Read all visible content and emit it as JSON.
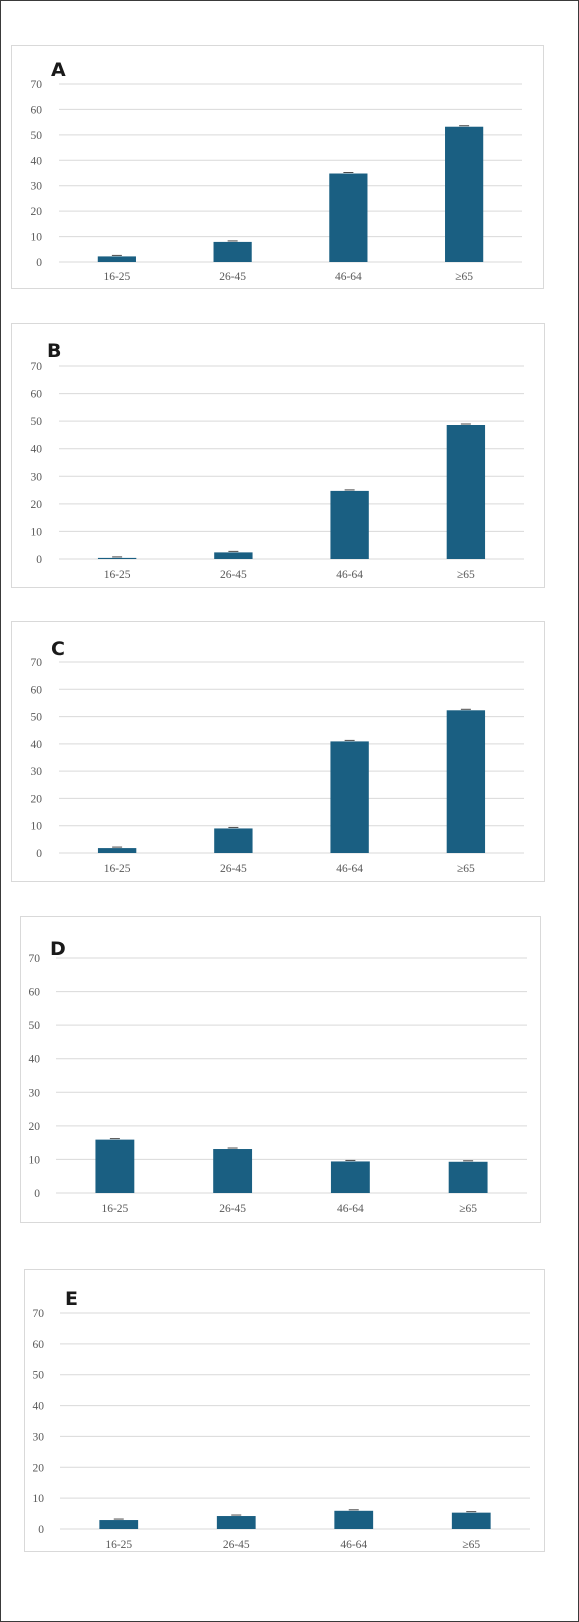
{
  "colors": {
    "bar": "#1a5f82",
    "grid": "#d9d9d9",
    "axis_text": "#595959",
    "panel_border": "#d9d9d9"
  },
  "chart_data": [
    {
      "type": "bar",
      "panel_label": "A",
      "categories": [
        "16-25",
        "26-45",
        "46-64",
        "≥65"
      ],
      "values": [
        2.2,
        7.9,
        34.8,
        53.2
      ],
      "ylim": [
        0,
        70
      ],
      "yticks": [
        "0",
        "10",
        "20",
        "30",
        "40",
        "50",
        "60",
        "70"
      ],
      "grid": true,
      "error_bars": true
    },
    {
      "type": "bar",
      "panel_label": "B",
      "categories": [
        "16-25",
        "26-45",
        "46-64",
        "≥65"
      ],
      "values": [
        0.4,
        2.4,
        24.7,
        48.6
      ],
      "ylim": [
        0,
        70
      ],
      "yticks": [
        "0",
        "10",
        "20",
        "30",
        "40",
        "50",
        "60",
        "70"
      ],
      "grid": true,
      "error_bars": true
    },
    {
      "type": "bar",
      "panel_label": "C",
      "categories": [
        "16-25",
        "26-45",
        "46-64",
        "≥65"
      ],
      "values": [
        1.8,
        9.0,
        40.9,
        52.3
      ],
      "ylim": [
        0,
        70
      ],
      "yticks": [
        "0",
        "10",
        "20",
        "30",
        "40",
        "50",
        "60",
        "70"
      ],
      "grid": true,
      "error_bars": true
    },
    {
      "type": "bar",
      "panel_label": "D",
      "categories": [
        "16-25",
        "26-45",
        "46-64",
        "≥65"
      ],
      "values": [
        15.9,
        13.1,
        9.4,
        9.3
      ],
      "ylim": [
        0,
        70
      ],
      "yticks": [
        "0",
        "10",
        "20",
        "30",
        "40",
        "50",
        "60",
        "70"
      ],
      "grid": true,
      "error_bars": true
    },
    {
      "type": "bar",
      "panel_label": "E",
      "categories": [
        "16-25",
        "26-45",
        "46-64",
        "≥65"
      ],
      "values": [
        2.9,
        4.2,
        5.9,
        5.3
      ],
      "ylim": [
        0,
        70
      ],
      "yticks": [
        "0",
        "10",
        "20",
        "30",
        "40",
        "50",
        "60",
        "70"
      ],
      "grid": true,
      "error_bars": true
    }
  ]
}
